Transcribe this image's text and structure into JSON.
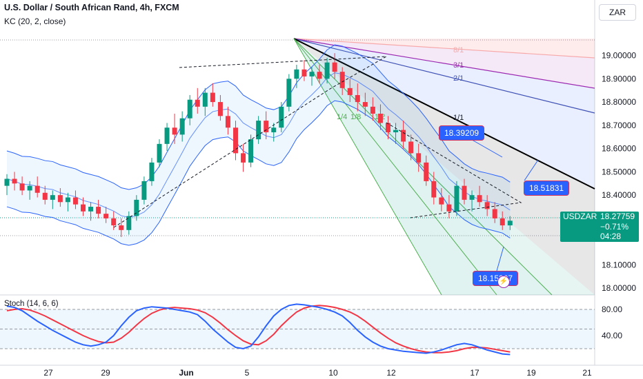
{
  "header": {
    "title": "U.S. Dollar / South African Rand, 4h, FXCM",
    "indicator": "KC (20, 2, close)",
    "currency": "ZAR"
  },
  "stoch_label": "Stoch (14, 6, 6)",
  "price_tag": {
    "symbol": "USDZAR",
    "price": "18.27759",
    "change": "−0.71%",
    "countdown": "04:28"
  },
  "labels": {
    "box1": "18.39209",
    "box2": "18.51831",
    "box3": "18.15307"
  },
  "fan_labels": [
    "8/1",
    "3/1",
    "2/1",
    "1/1",
    "1/4",
    "1/8",
    "1/2"
  ],
  "colors": {
    "up": "#089981",
    "down": "#f23645",
    "kc": "#2962ff",
    "stoch_k": "#2962ff",
    "stoch_d": "#f23645",
    "trend": "#000000"
  },
  "chart_data": {
    "type": "candlestick",
    "price_axis": {
      "ticks": [
        "19.00000",
        "18.90000",
        "18.80000",
        "18.70000",
        "18.60000",
        "18.50000",
        "18.40000",
        "18.10000",
        "18.00000"
      ],
      "range": [
        17.98,
        19.12
      ]
    },
    "stoch_axis": {
      "ticks": [
        "80.00",
        "40.00"
      ],
      "range": [
        0,
        100
      ]
    },
    "time_axis": [
      "27",
      "29",
      "Jun",
      "5",
      "10",
      "12",
      "17",
      "19",
      "21"
    ],
    "candles": [
      [
        18.44,
        18.49,
        18.4,
        18.47
      ],
      [
        18.47,
        18.5,
        18.42,
        18.45
      ],
      [
        18.45,
        18.48,
        18.4,
        18.42
      ],
      [
        18.42,
        18.46,
        18.38,
        18.44
      ],
      [
        18.44,
        18.48,
        18.39,
        18.41
      ],
      [
        18.41,
        18.44,
        18.36,
        18.38
      ],
      [
        18.38,
        18.42,
        18.34,
        18.4
      ],
      [
        18.4,
        18.43,
        18.35,
        18.37
      ],
      [
        18.37,
        18.41,
        18.33,
        18.39
      ],
      [
        18.39,
        18.42,
        18.34,
        18.36
      ],
      [
        18.36,
        18.39,
        18.31,
        18.33
      ],
      [
        18.33,
        18.37,
        18.29,
        18.35
      ],
      [
        18.35,
        18.38,
        18.3,
        18.32
      ],
      [
        18.32,
        18.35,
        18.28,
        18.3
      ],
      [
        18.3,
        18.33,
        18.25,
        18.27
      ],
      [
        18.27,
        18.3,
        18.22,
        18.25
      ],
      [
        18.25,
        18.33,
        18.23,
        18.31
      ],
      [
        18.31,
        18.4,
        18.29,
        18.38
      ],
      [
        18.38,
        18.48,
        18.36,
        18.46
      ],
      [
        18.46,
        18.56,
        18.44,
        18.54
      ],
      [
        18.54,
        18.64,
        18.52,
        18.62
      ],
      [
        18.62,
        18.71,
        18.59,
        18.69
      ],
      [
        18.69,
        18.75,
        18.62,
        18.66
      ],
      [
        18.66,
        18.76,
        18.63,
        18.73
      ],
      [
        18.73,
        18.83,
        18.7,
        18.81
      ],
      [
        18.81,
        18.86,
        18.75,
        18.78
      ],
      [
        18.78,
        18.86,
        18.74,
        18.84
      ],
      [
        18.84,
        18.88,
        18.78,
        18.8
      ],
      [
        18.8,
        18.83,
        18.72,
        18.74
      ],
      [
        18.74,
        18.78,
        18.66,
        18.69
      ],
      [
        18.69,
        18.72,
        18.55,
        18.58
      ],
      [
        18.58,
        18.62,
        18.5,
        18.54
      ],
      [
        18.54,
        18.66,
        18.52,
        18.64
      ],
      [
        18.64,
        18.74,
        18.62,
        18.72
      ],
      [
        18.72,
        18.76,
        18.64,
        18.67
      ],
      [
        18.67,
        18.71,
        18.63,
        18.69
      ],
      [
        18.69,
        18.8,
        18.67,
        18.78
      ],
      [
        18.78,
        18.92,
        18.76,
        18.9
      ],
      [
        18.9,
        18.96,
        18.86,
        18.94
      ],
      [
        18.94,
        18.98,
        18.89,
        18.91
      ],
      [
        18.91,
        18.95,
        18.87,
        18.93
      ],
      [
        18.93,
        18.96,
        18.88,
        18.9
      ],
      [
        18.9,
        18.99,
        18.88,
        18.97
      ],
      [
        18.97,
        19.01,
        18.9,
        18.93
      ],
      [
        18.93,
        18.95,
        18.83,
        18.86
      ],
      [
        18.86,
        18.9,
        18.8,
        18.83
      ],
      [
        18.83,
        18.88,
        18.76,
        18.8
      ],
      [
        18.8,
        18.84,
        18.74,
        18.78
      ],
      [
        18.78,
        18.82,
        18.72,
        18.75
      ],
      [
        18.75,
        18.79,
        18.68,
        18.71
      ],
      [
        18.71,
        18.74,
        18.64,
        18.67
      ],
      [
        18.67,
        18.71,
        18.62,
        18.68
      ],
      [
        18.68,
        18.72,
        18.6,
        18.63
      ],
      [
        18.63,
        18.66,
        18.55,
        18.58
      ],
      [
        18.58,
        18.62,
        18.5,
        18.54
      ],
      [
        18.54,
        18.57,
        18.44,
        18.46
      ],
      [
        18.46,
        18.5,
        18.36,
        18.39
      ],
      [
        18.39,
        18.43,
        18.33,
        18.36
      ],
      [
        18.36,
        18.4,
        18.3,
        18.33
      ],
      [
        18.33,
        18.46,
        18.31,
        18.44
      ],
      [
        18.44,
        18.47,
        18.36,
        18.38
      ],
      [
        18.38,
        18.42,
        18.33,
        18.4
      ],
      [
        18.4,
        18.44,
        18.35,
        18.37
      ],
      [
        18.37,
        18.4,
        18.31,
        18.34
      ],
      [
        18.34,
        18.37,
        18.28,
        18.3
      ],
      [
        18.3,
        18.33,
        18.25,
        18.27
      ],
      [
        18.27,
        18.31,
        18.25,
        18.29
      ]
    ],
    "stoch_k": [
      85,
      83,
      78,
      70,
      62,
      55,
      48,
      42,
      36,
      30,
      26,
      24,
      26,
      30,
      40,
      55,
      68,
      78,
      82,
      84,
      83,
      82,
      80,
      78,
      76,
      72,
      62,
      50,
      40,
      30,
      22,
      20,
      24,
      38,
      55,
      70,
      80,
      86,
      88,
      87,
      85,
      83,
      80,
      76,
      70,
      60,
      48,
      38,
      30,
      24,
      20,
      18,
      16,
      15,
      14,
      13,
      15,
      18,
      22,
      26,
      28,
      26,
      22,
      18,
      15,
      12,
      11
    ],
    "stoch_d": [
      78,
      80,
      81,
      79,
      75,
      70,
      64,
      58,
      52,
      46,
      40,
      35,
      31,
      29,
      30,
      36,
      45,
      56,
      66,
      74,
      79,
      82,
      83,
      82,
      81,
      79,
      75,
      68,
      59,
      49,
      40,
      32,
      27,
      26,
      32,
      42,
      55,
      66,
      76,
      82,
      85,
      86,
      85,
      83,
      80,
      76,
      70,
      62,
      53,
      44,
      36,
      29,
      24,
      20,
      17,
      15,
      14,
      14,
      15,
      17,
      20,
      22,
      22,
      21,
      19,
      17,
      15
    ]
  }
}
